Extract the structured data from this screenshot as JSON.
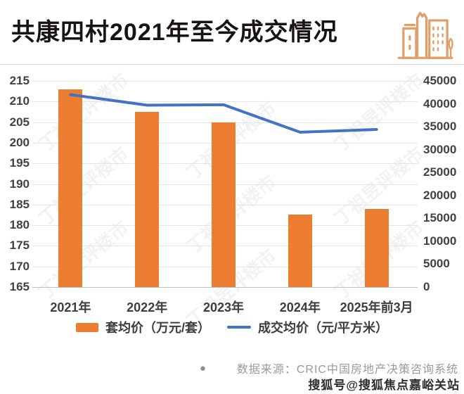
{
  "header": {
    "title": "共康四村2021年至今成交情况",
    "icon": "buildings-icon"
  },
  "chart_data": {
    "type": "bar",
    "subtype": "bar-line-combo",
    "categories": [
      "2021年",
      "2022年",
      "2023年",
      "2024年",
      "2025年前3月"
    ],
    "series": [
      {
        "name": "套均价（万元/套）",
        "type": "bar",
        "axis": "left",
        "color": "#ED7D31",
        "values": [
          213,
          207.5,
          205,
          182.5,
          184
        ]
      },
      {
        "name": "成交均价（元/平方米）",
        "type": "line",
        "axis": "right",
        "color": "#4472C4",
        "values": [
          42000,
          39700,
          39800,
          33800,
          34400
        ]
      }
    ],
    "left_axis": {
      "min": 165,
      "max": 215,
      "step": 5,
      "ticks": [
        215,
        210,
        205,
        200,
        195,
        190,
        185,
        180,
        175,
        170,
        165
      ]
    },
    "right_axis": {
      "min": 0,
      "max": 45000,
      "step": 5000,
      "ticks": [
        45000,
        40000,
        35000,
        30000,
        25000,
        20000,
        15000,
        10000,
        5000,
        0
      ]
    },
    "grid": true,
    "legend_position": "bottom"
  },
  "footer": {
    "bullet": "●",
    "source": "数据来源：CRIC中国房地产决策咨询系统"
  },
  "watermark": {
    "tile_text": "丁祖昱评楼市",
    "sohu": "搜狐号@搜狐焦点嘉峪关站"
  },
  "colors": {
    "bar_orange": "#ED7D31",
    "line_blue": "#4472C4",
    "icon_orange": "#DFA06C",
    "grid": "#E4E4E4",
    "tick_text": "#414141",
    "title_text": "#181414",
    "footer_text": "#9A9A9A"
  }
}
